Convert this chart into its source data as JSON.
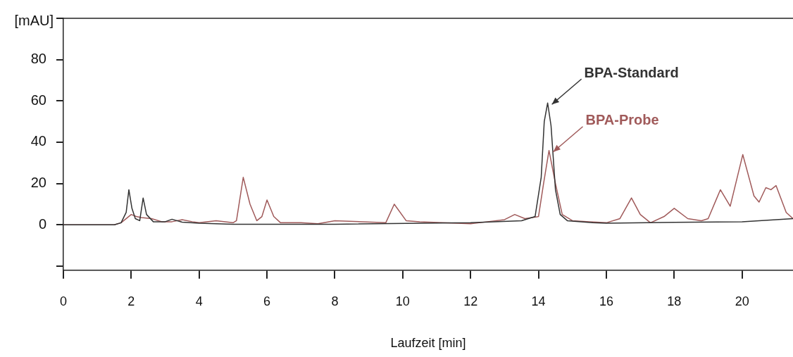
{
  "chart_data": {
    "type": "line",
    "xlabel": "Laufzeit [min]",
    "ylabel": "[mAU]",
    "xlim": [
      0,
      21.5
    ],
    "ylim": [
      -22,
      100
    ],
    "xticks": [
      0,
      2,
      4,
      6,
      8,
      10,
      12,
      14,
      16,
      18,
      20
    ],
    "yticks": [
      {
        "value": -20,
        "label": null
      },
      0,
      20,
      40,
      60,
      80,
      {
        "value": 100,
        "label": null
      }
    ],
    "grid": false,
    "legend": false,
    "marker": "none",
    "line_style": "solid",
    "series": [
      {
        "name": "BPA-Standard",
        "color": "#333333",
        "x": [
          0,
          1.5,
          1.7,
          1.85,
          1.93,
          2.02,
          2.12,
          2.25,
          2.35,
          2.45,
          2.65,
          3.0,
          3.2,
          3.5,
          4.0,
          5.0,
          8.0,
          12.0,
          13.5,
          13.9,
          14.08,
          14.17,
          14.27,
          14.37,
          14.5,
          14.64,
          14.85,
          15.6,
          16.0,
          18.0,
          20.0,
          21.5
        ],
        "values": [
          0,
          0,
          1,
          6,
          17,
          8,
          3,
          2,
          13,
          5,
          1.5,
          1.5,
          2.7,
          1.3,
          0.8,
          0.3,
          0.3,
          1,
          2,
          4,
          23,
          50,
          59,
          48,
          17,
          5,
          2,
          1,
          0.8,
          1.2,
          1.5,
          3
        ]
      },
      {
        "name": "BPA-Probe",
        "color": "#a05a5a",
        "x": [
          0,
          1.5,
          1.7,
          2.0,
          2.15,
          2.3,
          2.6,
          2.9,
          3.2,
          3.5,
          3.8,
          4.0,
          4.5,
          5.0,
          5.1,
          5.3,
          5.5,
          5.7,
          5.85,
          6.0,
          6.2,
          6.4,
          7.0,
          7.5,
          8.0,
          9.5,
          9.75,
          10.1,
          10.5,
          12.0,
          12.5,
          13.0,
          13.3,
          13.6,
          14.0,
          14.15,
          14.31,
          14.5,
          14.7,
          15.0,
          15.5,
          16.0,
          16.4,
          16.74,
          17.0,
          17.3,
          17.7,
          18.0,
          18.4,
          18.8,
          19.0,
          19.36,
          19.65,
          20.02,
          20.35,
          20.5,
          20.7,
          20.85,
          21.0,
          21.3,
          21.5
        ],
        "values": [
          0,
          0,
          1,
          5,
          4,
          3.5,
          3,
          1.5,
          1.5,
          2.5,
          1.5,
          1,
          2,
          1,
          2,
          23,
          10,
          2,
          4,
          12,
          4,
          1,
          1,
          0.5,
          2,
          1,
          10,
          2,
          1.5,
          0.5,
          1.5,
          2.5,
          5,
          3,
          4,
          20,
          36,
          20,
          5,
          2,
          1.5,
          1,
          3,
          13,
          5,
          1,
          4,
          8,
          3,
          2,
          3,
          17,
          9,
          34,
          14,
          11,
          18,
          17,
          19,
          6,
          3
        ]
      }
    ]
  }
}
